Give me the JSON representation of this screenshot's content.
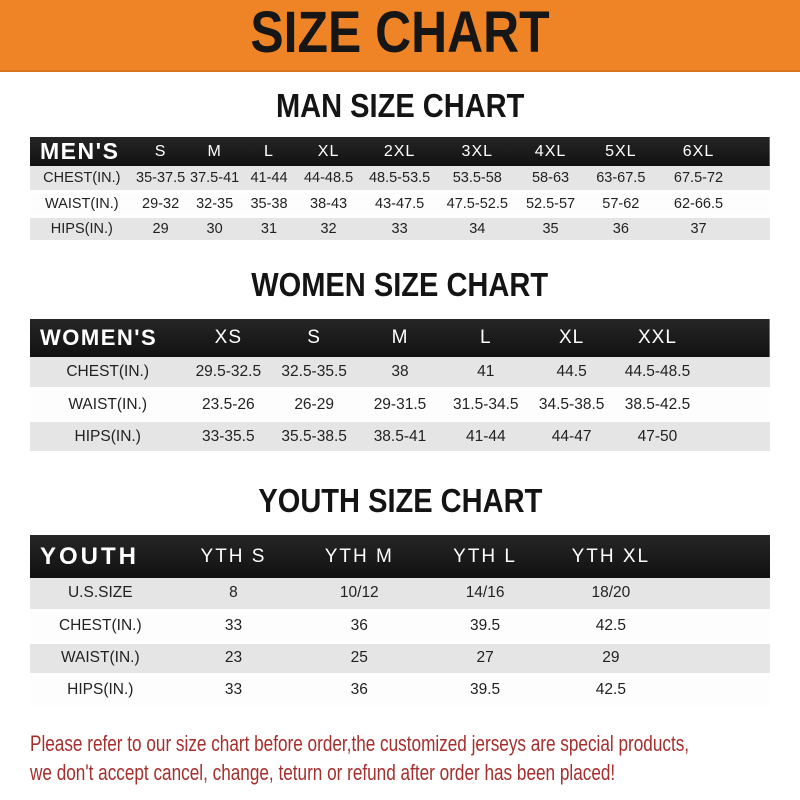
{
  "banner": {
    "title": "SIZE CHART"
  },
  "colors": {
    "banner_bg": "#EF8426",
    "header_bar": "#1B1B1B",
    "row_stripe": "#E5E5E5",
    "disclaimer_text": "#A52F2D",
    "body_bg": "#FFFFFF",
    "banner_title_text": "#161616"
  },
  "sections": [
    {
      "title": "MAN SIZE CHART",
      "table": {
        "header": [
          "MEN'S",
          "S",
          "M",
          "L",
          "XL",
          "2XL",
          "3XL",
          "4XL",
          "5XL",
          "6XL"
        ],
        "rows": [
          [
            "CHEST(IN.)",
            "35-37.5",
            "37.5-41",
            "41-44",
            "44-48.5",
            "48.5-53.5",
            "53.5-58",
            "58-63",
            "63-67.5",
            "67.5-72"
          ],
          [
            "WAIST(IN.)",
            "29-32",
            "32-35",
            "35-38",
            "38-43",
            "43-47.5",
            "47.5-52.5",
            "52.5-57",
            "57-62",
            "62-66.5"
          ],
          [
            "HIPS(IN.)",
            "29",
            "30",
            "31",
            "32",
            "33",
            "34",
            "35",
            "36",
            "37"
          ]
        ]
      }
    },
    {
      "title": "WOMEN SIZE CHART",
      "table": {
        "header": [
          "WOMEN'S",
          "XS",
          "S",
          "M",
          "L",
          "XL",
          "XXL"
        ],
        "rows": [
          [
            "CHEST(IN.)",
            "29.5-32.5",
            "32.5-35.5",
            "38",
            "41",
            "44.5",
            "44.5-48.5"
          ],
          [
            "WAIST(IN.)",
            "23.5-26",
            "26-29",
            "29-31.5",
            "31.5-34.5",
            "34.5-38.5",
            "38.5-42.5"
          ],
          [
            "HIPS(IN.)",
            "33-35.5",
            "35.5-38.5",
            "38.5-41",
            "41-44",
            "44-47",
            "47-50"
          ]
        ]
      }
    },
    {
      "title": "YOUTH SIZE CHART",
      "table": {
        "header": [
          "YOUTH",
          "YTH S",
          "YTH M",
          "YTH L",
          "YTH XL"
        ],
        "rows": [
          [
            "U.S.SIZE",
            "8",
            "10/12",
            "14/16",
            "18/20"
          ],
          [
            "CHEST(IN.)",
            "33",
            "36",
            "39.5",
            "42.5"
          ],
          [
            "WAIST(IN.)",
            "23",
            "25",
            "27",
            "29"
          ],
          [
            "HIPS(IN.)",
            "33",
            "36",
            "39.5",
            "42.5"
          ]
        ]
      }
    }
  ],
  "footer": {
    "line1": "Please refer to our size chart before order,the customized jerseys are special products,",
    "line2": "we don't accept cancel, change, teturn or refund after order has been placed!"
  }
}
